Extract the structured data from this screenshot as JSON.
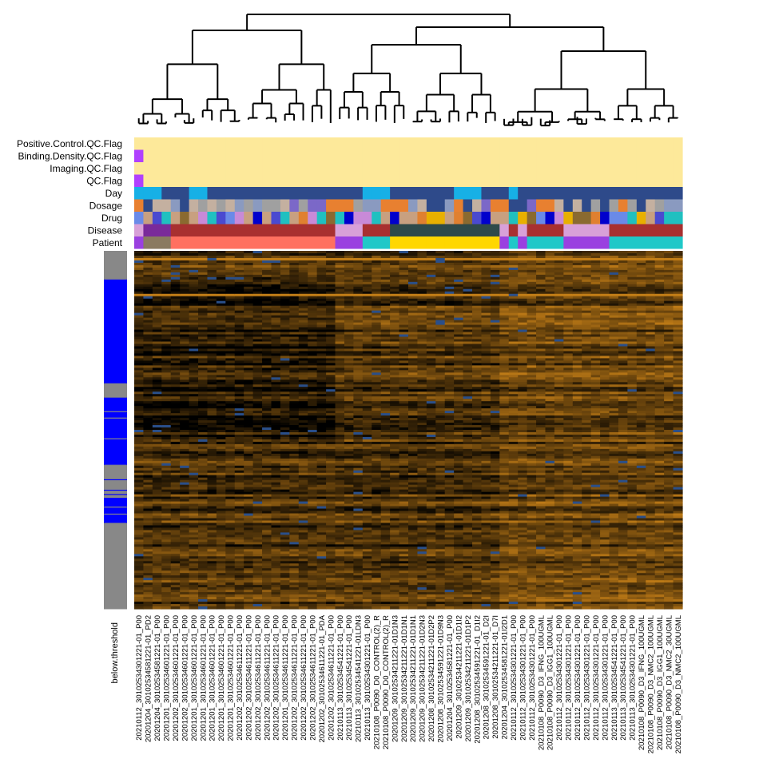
{
  "chart_data": {
    "type": "heatmap",
    "title": "",
    "annotation_tracks": [
      "Positive.Control.QC.Flag",
      "Binding.Density.QC.Flag",
      "Imaging.QC.Flag",
      "QC.Flag",
      "Day",
      "Dosage",
      "Drug",
      "Disease",
      "Patient"
    ],
    "row_annotation": {
      "label": "below.threshold",
      "colors": {
        "grey": "#888888",
        "blue": "#0000ff"
      }
    },
    "colors": {
      "heatmap_low": "#000000",
      "heatmap_high": "#d98c1a",
      "heatmap_alt": "#2a4f8a",
      "qc_pass": "#fde99a",
      "qc_fail": "#b040ff"
    },
    "column_labels": [
      "20210112_30102534301221-01_P00",
      "20201204_30102534581221-01_PD2",
      "20201204_30102534581221-01_P00",
      "20201201_30102534601221-01_P00",
      "20201202_30102534601221-01_P00",
      "20201202_30102534601221-01_P00",
      "20201201_30102534601221-01_P00",
      "20201201_30102534601221-01_P00",
      "20201201_30102534601221-01_P00",
      "20201201_30102534601221-01_P00",
      "20201201_30102534601221-01_P00",
      "20201202_30102534611221-01_P00",
      "20201202_30102534611221-01_P00",
      "20201202_30102534611221-01_P00",
      "20201202_30102534611221-01_P00",
      "20201202_30102534611221-01_P00",
      "20201201_30102534611221-01_P00",
      "20201202_30102534611221-01_P00",
      "20201202_30102534611221-01_P00",
      "20201202_30102534611221-01_P00",
      "20201202_30102534611221-01_PDA",
      "20201202_30102534611221-01_P00",
      "20210113_30102534541221-01_P00",
      "20210113_30102534541221-01_P00",
      "20210113_30102534541221-01LDN3",
      "20210113_30102534301221-01_P00",
      "20210108_P0090_D0_CONTROL(2)_R",
      "20210108_P0090_D0_CONTROL(2)_R",
      "20201209_30102534211221-01D1N3",
      "20201209_30102534211221-01D1N1",
      "20201209_30102534211221-01D1N1",
      "20201209_30102534211221-01D2N3",
      "20201208_30102534211221-01D2P2",
      "20201208_30102534591221-01D9N3",
      "20201204_30102534581221-01_P00",
      "20201209_30102534211221-01D1I2",
      "20201209_30102534211221-01D1P2",
      "20201208_30102534591221-01_D1I2",
      "20201208_30102534591221-01_D2I",
      "20201208_30102534211221-01_D7I",
      "20201204_30102534581221-01I2D1",
      "20210112_30102534301221-01_P00",
      "20210112_30102534301221-01_P00",
      "20210112_30102534301221-01_P00",
      "20210108_P0090_D3_IFNG_100UGML",
      "20210108_P0090_D3_IGG1_100UGML",
      "20210112_30102534301221-01_P00",
      "20210112_30102534301221-01_P00",
      "20210112_30102534301221-01_P00",
      "20210112_30102534301221-01_P00",
      "20210112_30102534301221-01_P00",
      "20210112_30102534301221-01_P00",
      "20210113_30102534541221-01_P00",
      "20210113_30102534541221-01_P00",
      "20210113_30102534301221-01_P00",
      "20210108_P0090_D3_IFNG_100UGML",
      "20210108_P0090_D3_NMC2_100UGML",
      "20210108_P0090_D3_IGG1_100UGML",
      "20210108_P0090_D3_NMC2_30UGML",
      "20210108_P0090_D3_NMC2_100UGML"
    ]
  }
}
